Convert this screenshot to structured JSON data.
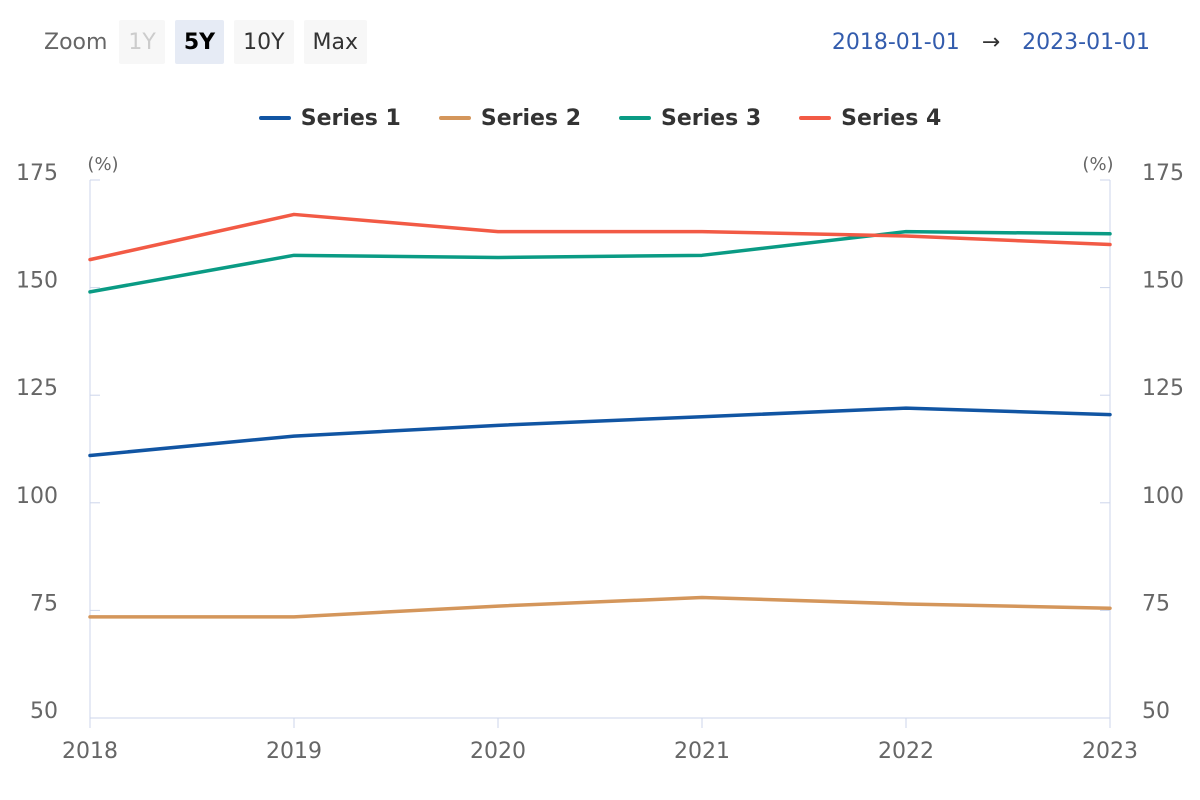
{
  "toolbar": {
    "zoom_label": "Zoom",
    "buttons": [
      {
        "label": "1Y",
        "state": "disabled"
      },
      {
        "label": "5Y",
        "state": "selected"
      },
      {
        "label": "10Y",
        "state": "normal"
      },
      {
        "label": "Max",
        "state": "normal"
      }
    ]
  },
  "range": {
    "from": "2018-01-01",
    "arrow": "→",
    "to": "2023-01-01"
  },
  "chart_data": {
    "type": "line",
    "x": [
      "2018",
      "2019",
      "2020",
      "2021",
      "2022",
      "2023"
    ],
    "yunit_left": "(%)",
    "yunit_right": "(%)",
    "ylim": [
      50,
      175
    ],
    "yticks": [
      50,
      75,
      100,
      125,
      150,
      175
    ],
    "grid": false,
    "legend_position": "top-center",
    "series": [
      {
        "name": "Series 1",
        "color": "#1155a3",
        "values": [
          111,
          115.5,
          118,
          120,
          122,
          120.5
        ]
      },
      {
        "name": "Series 2",
        "color": "#d4965b",
        "values": [
          73.5,
          73.5,
          76,
          78,
          76.5,
          75.5
        ]
      },
      {
        "name": "Series 3",
        "color": "#0a9b84",
        "values": [
          149,
          157.5,
          157,
          157.5,
          163,
          162.5
        ]
      },
      {
        "name": "Series 4",
        "color": "#f25a45",
        "values": [
          156.5,
          167,
          163,
          163,
          162,
          160
        ]
      }
    ]
  }
}
